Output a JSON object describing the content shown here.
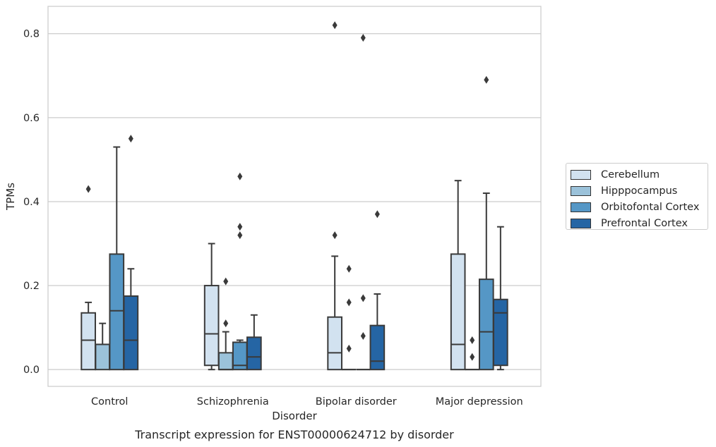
{
  "chart_data": {
    "type": "box",
    "title": "Transcript expression for ENST00000624712 by disorder",
    "xlabel": "Disorder",
    "ylabel": "TPMs",
    "ylim": [
      -0.04,
      0.865
    ],
    "yticks": [
      "0.0",
      "0.2",
      "0.4",
      "0.6",
      "0.8"
    ],
    "grid": "horizontal",
    "legend_position": "right",
    "categories": [
      "Control",
      "Schizophrenia",
      "Bipolar disorder",
      "Major depression"
    ],
    "series": [
      {
        "name": "Cerebellum",
        "color": "#d2e2f0",
        "boxes": [
          {
            "whisker_low": 0.0,
            "q1": 0.0,
            "median": 0.07,
            "q3": 0.135,
            "whisker_high": 0.16,
            "outliers": [
              0.43
            ]
          },
          {
            "whisker_low": 0.0,
            "q1": 0.01,
            "median": 0.085,
            "q3": 0.2,
            "whisker_high": 0.3,
            "outliers": []
          },
          {
            "whisker_low": 0.0,
            "q1": 0.0,
            "median": 0.04,
            "q3": 0.125,
            "whisker_high": 0.27,
            "outliers": [
              0.32,
              0.82
            ]
          },
          {
            "whisker_low": 0.0,
            "q1": 0.0,
            "median": 0.06,
            "q3": 0.275,
            "whisker_high": 0.45,
            "outliers": []
          }
        ]
      },
      {
        "name": "Hipppocampus",
        "color": "#9bc2da",
        "boxes": [
          {
            "whisker_low": 0.0,
            "q1": 0.0,
            "median": 0.06,
            "q3": 0.06,
            "whisker_high": 0.11,
            "outliers": []
          },
          {
            "whisker_low": 0.0,
            "q1": 0.0,
            "median": 0.0,
            "q3": 0.04,
            "whisker_high": 0.09,
            "outliers": [
              0.11,
              0.21
            ]
          },
          {
            "whisker_low": 0.0,
            "q1": 0.0,
            "median": 0.0,
            "q3": 0.0,
            "whisker_high": 0.0,
            "outliers": [
              0.05,
              0.16,
              0.24
            ]
          },
          {
            "whisker_low": 0.0,
            "q1": 0.0,
            "median": 0.0,
            "q3": 0.0,
            "whisker_high": 0.0,
            "outliers": [
              0.03,
              0.07
            ]
          }
        ]
      },
      {
        "name": "Orbitofontal Cortex",
        "color": "#5597c6",
        "boxes": [
          {
            "whisker_low": 0.0,
            "q1": 0.0,
            "median": 0.14,
            "q3": 0.275,
            "whisker_high": 0.53,
            "outliers": []
          },
          {
            "whisker_low": 0.0,
            "q1": 0.0,
            "median": 0.01,
            "q3": 0.065,
            "whisker_high": 0.07,
            "outliers": [
              0.32,
              0.34,
              0.46
            ]
          },
          {
            "whisker_low": 0.0,
            "q1": 0.0,
            "median": 0.0,
            "q3": 0.0,
            "whisker_high": 0.0,
            "outliers": [
              0.08,
              0.17,
              0.79
            ]
          },
          {
            "whisker_low": 0.0,
            "q1": 0.0,
            "median": 0.09,
            "q3": 0.215,
            "whisker_high": 0.42,
            "outliers": [
              0.69
            ]
          }
        ]
      },
      {
        "name": "Prefrontal Cortex",
        "color": "#2565a4",
        "boxes": [
          {
            "whisker_low": 0.0,
            "q1": 0.0,
            "median": 0.07,
            "q3": 0.175,
            "whisker_high": 0.24,
            "outliers": [
              0.55
            ]
          },
          {
            "whisker_low": 0.0,
            "q1": 0.0,
            "median": 0.03,
            "q3": 0.077,
            "whisker_high": 0.13,
            "outliers": []
          },
          {
            "whisker_low": 0.0,
            "q1": 0.0,
            "median": 0.02,
            "q3": 0.105,
            "whisker_high": 0.18,
            "outliers": [
              0.37
            ]
          },
          {
            "whisker_low": 0.0,
            "q1": 0.01,
            "median": 0.135,
            "q3": 0.167,
            "whisker_high": 0.34,
            "outliers": []
          }
        ]
      }
    ]
  }
}
